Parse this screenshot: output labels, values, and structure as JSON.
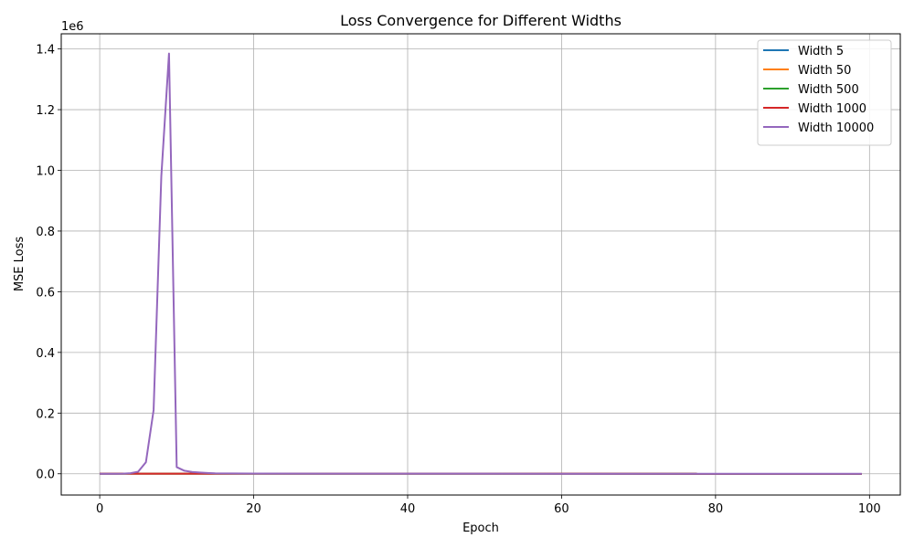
{
  "chart_data": {
    "type": "line",
    "title": "Loss Convergence for Different Widths",
    "xlabel": "Epoch",
    "ylabel": "MSE Loss",
    "y_offset_label": "1e6",
    "xlim": [
      -5,
      104
    ],
    "ylim": [
      -70000,
      1450000
    ],
    "x_ticks": [
      0,
      20,
      40,
      60,
      80,
      100
    ],
    "x_tick_labels": [
      "0",
      "20",
      "40",
      "60",
      "80",
      "100"
    ],
    "y_ticks": [
      0,
      200000,
      400000,
      600000,
      800000,
      1000000,
      1200000,
      1400000
    ],
    "y_tick_labels": [
      "0.0",
      "0.2",
      "0.4",
      "0.6",
      "0.8",
      "1.0",
      "1.2",
      "1.4"
    ],
    "grid": true,
    "legend_position": "top-right",
    "series": [
      {
        "name": "Width 5",
        "color": "#1f77b4",
        "x": [
          0,
          99
        ],
        "y": [
          500,
          0
        ]
      },
      {
        "name": "Width 50",
        "color": "#ff7f0e",
        "x": [
          0,
          99
        ],
        "y": [
          500,
          0
        ]
      },
      {
        "name": "Width 500",
        "color": "#2ca02c",
        "x": [
          0,
          99
        ],
        "y": [
          500,
          0
        ]
      },
      {
        "name": "Width 1000",
        "color": "#d62728",
        "x": [
          0,
          99
        ],
        "y": [
          500,
          0
        ]
      },
      {
        "name": "Width 10000",
        "color": "#9467bd",
        "x": [
          0,
          1,
          2,
          3,
          4,
          5,
          6,
          7,
          8,
          9,
          10,
          11,
          12,
          13,
          14,
          15,
          20,
          30,
          40,
          50,
          60,
          70,
          80,
          90,
          99
        ],
        "y": [
          0,
          0,
          0,
          500,
          2000,
          7000,
          38000,
          210000,
          980000,
          1385000,
          22000,
          10000,
          6000,
          4000,
          2500,
          1500,
          800,
          500,
          300,
          200,
          150,
          100,
          80,
          50,
          30
        ]
      }
    ]
  }
}
